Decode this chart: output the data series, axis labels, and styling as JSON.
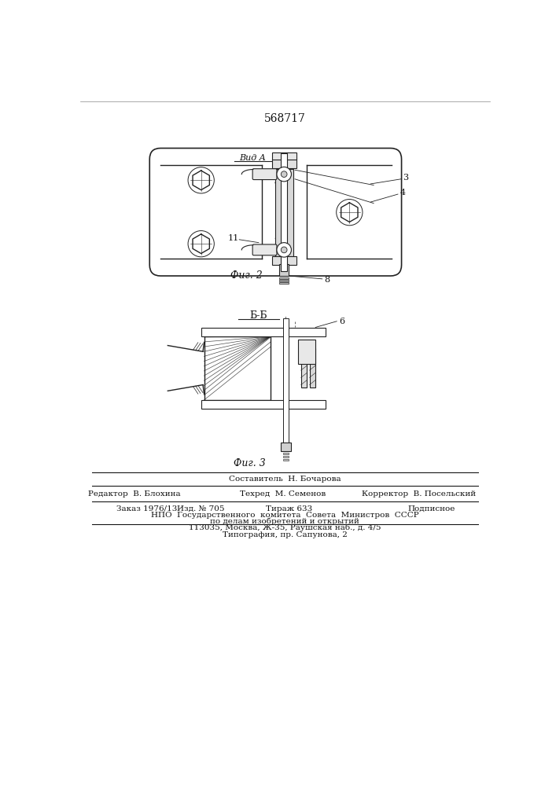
{
  "patent_number": "568717",
  "fig2_label": "Фиг. 2",
  "fig3_label": "Фиг. 3",
  "vid_a_label": "Вид A",
  "section_bb_label": "Б-Б",
  "footer": {
    "composer_label": "Составитель",
    "composer_name": "Н. Бочарова",
    "editor_label": "Редактор",
    "editor_name": "В. Блохина",
    "tech_label": "Техред",
    "tech_name": "М. Семенов",
    "corrector_label": "Корректор",
    "corrector_name": "В. Посельский",
    "order": "Заказ 1976/13",
    "izd": "Изд. № 705",
    "tirazh": "Тираж 633",
    "podpisnoe": "Подписное",
    "npo_line": "НПО  Государственного  комитета  Совета  Министров  СССР",
    "po_delam": "по делам изобретений и открытий",
    "address": "113035, Москва, Ж-35, Раушская наб., д. 4/5",
    "tipografia": "Типография, пр. Сапунова, 2"
  },
  "bg_color": "#ffffff"
}
